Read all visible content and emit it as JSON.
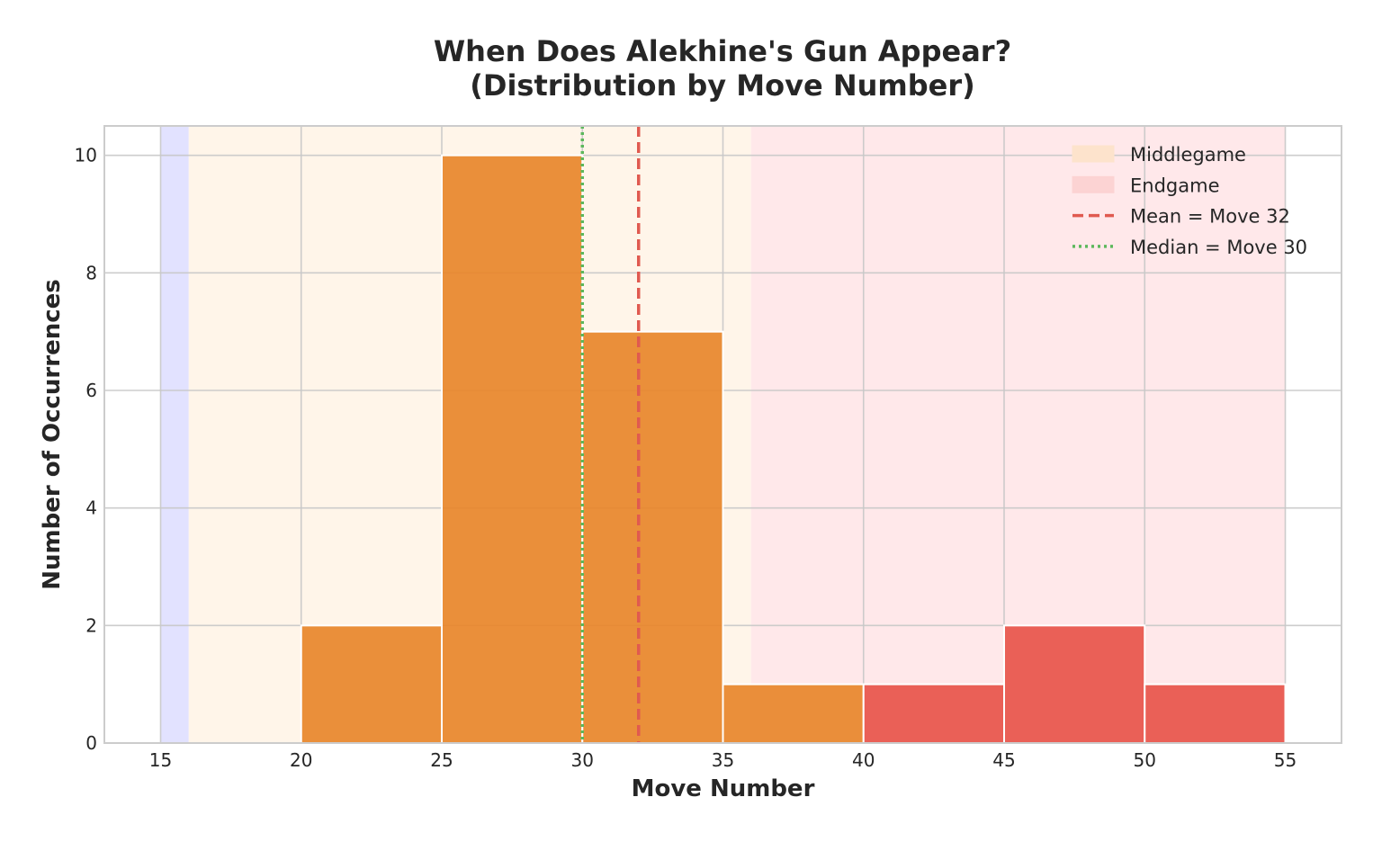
{
  "chart_data": {
    "type": "bar",
    "title_line1": "When Does Alekhine's Gun Appear?",
    "title_line2": "(Distribution by Move Number)",
    "xlabel": "Move Number",
    "ylabel": "Number of Occurrences",
    "xlim": [
      13,
      57
    ],
    "ylim": [
      0,
      10.5
    ],
    "x_ticks": [
      15,
      20,
      25,
      30,
      35,
      40,
      45,
      50,
      55
    ],
    "y_ticks": [
      0,
      2,
      4,
      6,
      8,
      10
    ],
    "grid": true,
    "legend_position": "top-right",
    "bins": [
      {
        "x0": 20,
        "x1": 25,
        "value": 2,
        "color": "#e8862a"
      },
      {
        "x0": 25,
        "x1": 30,
        "value": 10,
        "color": "#e8862a"
      },
      {
        "x0": 30,
        "x1": 35,
        "value": 7,
        "color": "#e8862a"
      },
      {
        "x0": 35,
        "x1": 40,
        "value": 1,
        "color": "#e8862a"
      },
      {
        "x0": 40,
        "x1": 45,
        "value": 1,
        "color": "#e8544a"
      },
      {
        "x0": 45,
        "x1": 50,
        "value": 2,
        "color": "#e8544a"
      },
      {
        "x0": 50,
        "x1": 55,
        "value": 1,
        "color": "#e8544a"
      }
    ],
    "phases": [
      {
        "name": "",
        "x0": 15,
        "x1": 16,
        "color": "#e2e2ff"
      },
      {
        "name": "Middlegame",
        "x0": 16,
        "x1": 36,
        "color": "#fff5e9"
      },
      {
        "name": "Endgame",
        "x0": 36,
        "x1": 55,
        "color": "#ffe8ea"
      }
    ],
    "reference_lines": [
      {
        "name": "Mean = Move 32",
        "x": 32,
        "style": "dashed",
        "color": "#e05a50"
      },
      {
        "name": "Median = Move 30",
        "x": 30,
        "style": "dotted",
        "color": "#5cb85c"
      }
    ],
    "legend": [
      {
        "label": "Middlegame",
        "kind": "patch",
        "color": "#fde3cc"
      },
      {
        "label": "Endgame",
        "kind": "patch",
        "color": "#fcd3d3"
      },
      {
        "label": "Mean = Move 32",
        "kind": "dashed",
        "color": "#e05a50"
      },
      {
        "label": "Median = Move 30",
        "kind": "dotted",
        "color": "#5cb85c"
      }
    ]
  }
}
